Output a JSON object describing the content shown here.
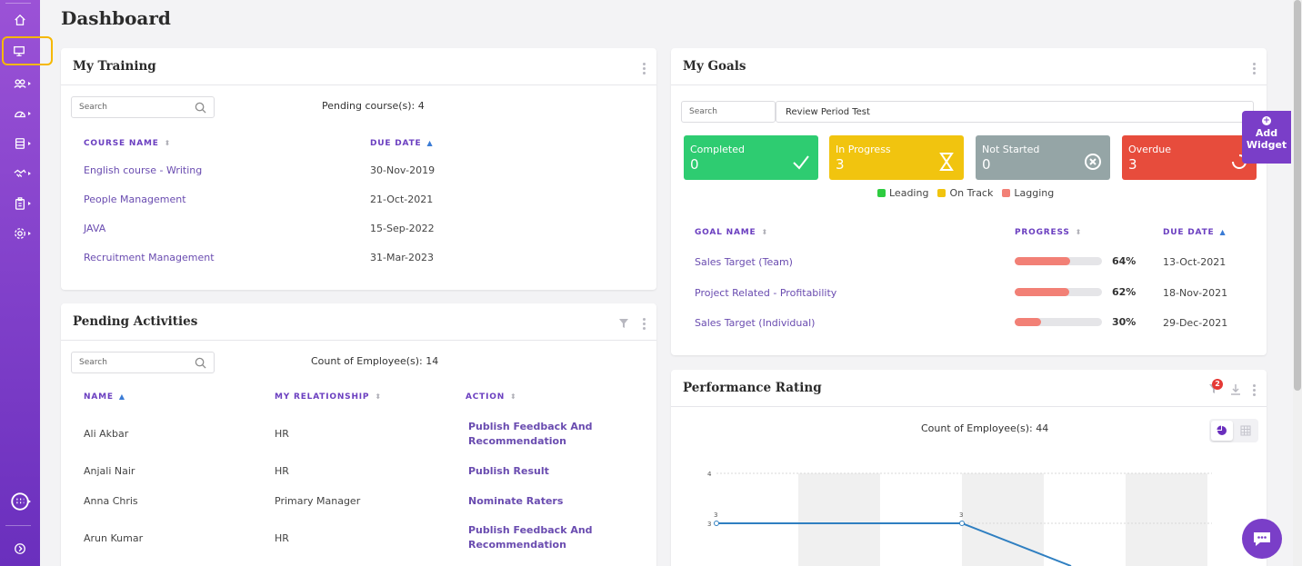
{
  "page": {
    "title": "Dashboard"
  },
  "sidebar": {
    "items": [
      {
        "icon": "home-icon"
      },
      {
        "icon": "monitor-icon",
        "active": true
      },
      {
        "icon": "users-icon"
      },
      {
        "icon": "gauge-icon"
      },
      {
        "icon": "database-icon"
      },
      {
        "icon": "handshake-icon"
      },
      {
        "icon": "clipboard-icon"
      },
      {
        "icon": "settings-icon"
      },
      {
        "icon": "apps-icon"
      },
      {
        "icon": "expand-icon"
      }
    ],
    "active_highlight": "#f5b800"
  },
  "training": {
    "title": "My Training",
    "search_placeholder": "Search",
    "pending": "Pending course(s): 4",
    "columns": {
      "course": "COURSE NAME",
      "due": "DUE DATE"
    },
    "rows": [
      {
        "course": "English course - Writing",
        "due": "30-Nov-2019"
      },
      {
        "course": "People Management",
        "due": "21-Oct-2021"
      },
      {
        "course": "JAVA",
        "due": "15-Sep-2022"
      },
      {
        "course": "Recruitment Management",
        "due": "31-Mar-2023"
      }
    ]
  },
  "activities": {
    "title": "Pending Activities",
    "search_placeholder": "Search",
    "count": "Count of Employee(s): 14",
    "columns": {
      "name": "NAME",
      "relationship": "MY RELATIONSHIP",
      "action": "ACTION"
    },
    "rows": [
      {
        "name": "Ali Akbar",
        "relationship": "HR",
        "action": "Publish Feedback And Recommendation"
      },
      {
        "name": "Anjali Nair",
        "relationship": "HR",
        "action": "Publish Result"
      },
      {
        "name": "Anna Chris",
        "relationship": "Primary Manager",
        "action": "Nominate Raters"
      },
      {
        "name": "Arun Kumar",
        "relationship": "HR",
        "action": "Publish Feedback And Recommendation"
      }
    ]
  },
  "goals": {
    "title": "My Goals",
    "search_placeholder": "Search",
    "review_period": "Review Period Test",
    "tiles": [
      {
        "label": "Completed",
        "value": "0",
        "color": "#2ecc71",
        "icon": "check-icon"
      },
      {
        "label": "In Progress",
        "value": "3",
        "color": "#f1c40f",
        "icon": "hourglass-icon"
      },
      {
        "label": "Not Started",
        "value": "0",
        "color": "#95a5a6",
        "icon": "x-circle-icon"
      },
      {
        "label": "Overdue",
        "value": "3",
        "color": "#e74c3c",
        "icon": "refresh-icon"
      }
    ],
    "legend": [
      {
        "label": "Leading",
        "color": "#2ecc40"
      },
      {
        "label": "On Track",
        "color": "#f1c40f"
      },
      {
        "label": "Lagging",
        "color": "#f28076"
      }
    ],
    "columns": {
      "name": "GOAL NAME",
      "progress": "PROGRESS",
      "due": "DUE DATE"
    },
    "rows": [
      {
        "name": "Sales Target (Team)",
        "progress": 64,
        "progress_label": "64%",
        "due": "13-Oct-2021"
      },
      {
        "name": "Project Related - Profitability",
        "progress": 62,
        "progress_label": "62%",
        "due": "18-Nov-2021"
      },
      {
        "name": "Sales Target (Individual)",
        "progress": 30,
        "progress_label": "30%",
        "due": "29-Dec-2021"
      }
    ]
  },
  "performance": {
    "title": "Performance Rating",
    "badge": "2",
    "count": "Count of Employee(s): 44",
    "chart_data": {
      "type": "line",
      "ytick_labels": [
        "4",
        "3"
      ],
      "points": [
        {
          "x": 0,
          "y": 3,
          "label": "3"
        },
        {
          "x": 1,
          "y": 3,
          "label": "3"
        },
        {
          "x": 1.45,
          "y": 2.2,
          "label": ""
        }
      ],
      "ylim": [
        2,
        4
      ],
      "line_color": "#2f7fc1"
    }
  },
  "add_widget": {
    "line1": "Add",
    "line2": "Widget"
  },
  "accent": "#7a3ec8"
}
